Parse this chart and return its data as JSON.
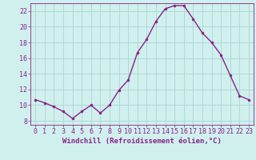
{
  "x": [
    0,
    1,
    2,
    3,
    4,
    5,
    6,
    7,
    8,
    9,
    10,
    11,
    12,
    13,
    14,
    15,
    16,
    17,
    18,
    19,
    20,
    21,
    22,
    23
  ],
  "y": [
    10.7,
    10.3,
    9.8,
    9.2,
    8.3,
    9.2,
    10.0,
    9.0,
    10.0,
    11.9,
    13.2,
    16.7,
    18.4,
    20.7,
    22.3,
    22.7,
    22.7,
    21.0,
    19.2,
    18.0,
    16.4,
    13.8,
    11.2,
    10.7
  ],
  "line_color": "#882288",
  "marker": "o",
  "marker_size": 2.0,
  "line_width": 1.0,
  "bg_color": "#d0f0ee",
  "grid_color": "#b0d8d4",
  "xlabel": "Windchill (Refroidissement éolien,°C)",
  "xlabel_fontsize": 6.5,
  "tick_fontsize": 6.0,
  "xlim": [
    -0.5,
    23.5
  ],
  "ylim": [
    7.5,
    23.0
  ],
  "yticks": [
    8,
    10,
    12,
    14,
    16,
    18,
    20,
    22
  ],
  "xticks": [
    0,
    1,
    2,
    3,
    4,
    5,
    6,
    7,
    8,
    9,
    10,
    11,
    12,
    13,
    14,
    15,
    16,
    17,
    18,
    19,
    20,
    21,
    22,
    23
  ]
}
